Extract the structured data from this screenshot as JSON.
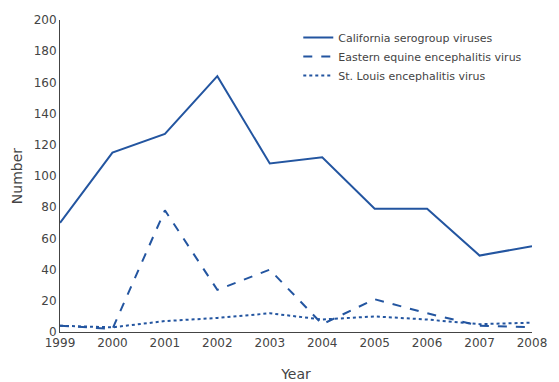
{
  "chart_data": {
    "type": "line",
    "xlabel": "Year",
    "ylabel": "Number",
    "x": [
      1999,
      2000,
      2001,
      2002,
      2003,
      2004,
      2005,
      2006,
      2007,
      2008
    ],
    "series": [
      {
        "name": "California serogroup viruses",
        "color": "#2355a0",
        "line_style": "solid",
        "values": [
          70,
          115,
          127,
          164,
          108,
          112,
          79,
          79,
          49,
          55
        ]
      },
      {
        "name": "Eastern equine encephalitis virus",
        "color": "#2355a0",
        "line_style": "dashed",
        "values": [
          4,
          2,
          78,
          27,
          40,
          5,
          21,
          12,
          4,
          3
        ]
      },
      {
        "name": "St. Louis encephalitis virus",
        "color": "#2355a0",
        "line_style": "dotted",
        "values": [
          4,
          3,
          7,
          9,
          12,
          8,
          10,
          8,
          5,
          6
        ]
      }
    ],
    "xlim": [
      1999,
      2008
    ],
    "xticks": [
      1999,
      2000,
      2001,
      2002,
      2003,
      2004,
      2005,
      2006,
      2007,
      2008
    ],
    "ylim": [
      0,
      200
    ],
    "yticks": [
      0,
      20,
      40,
      60,
      80,
      100,
      120,
      140,
      160,
      180,
      200
    ],
    "grid": false,
    "legend": "upper right"
  }
}
